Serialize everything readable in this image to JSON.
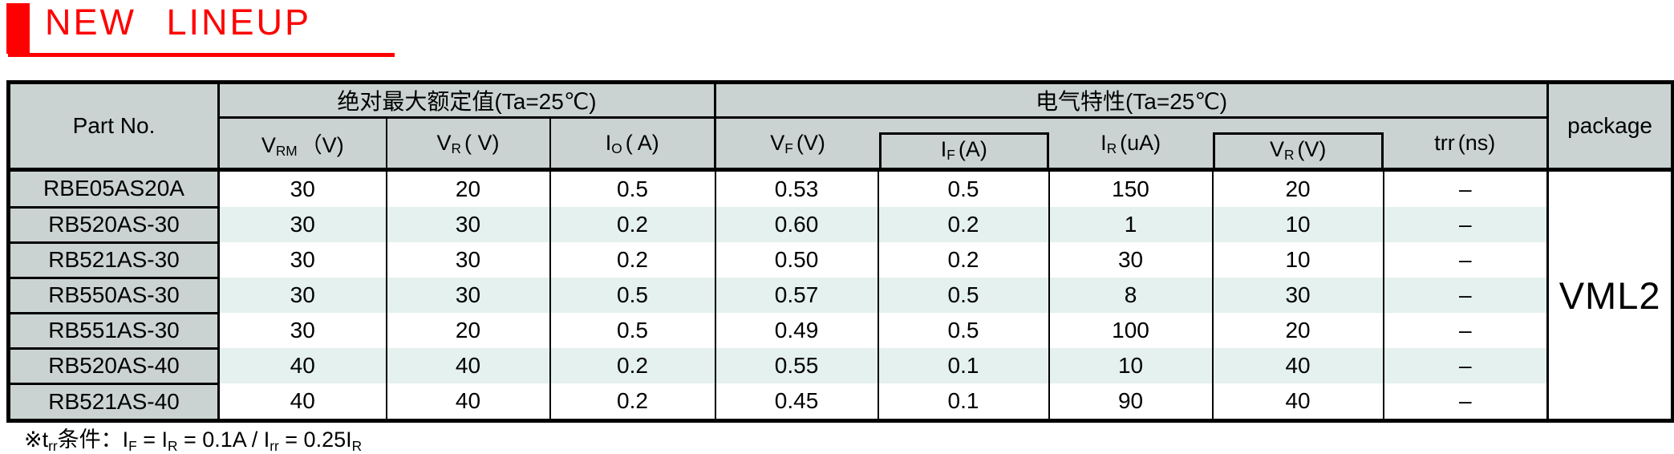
{
  "banner": {
    "title": "NEW LINEUP",
    "accent_color": "#ff0000"
  },
  "colors": {
    "header_bg": "#cad3d1",
    "row_alt_bg": "#e4f1ee",
    "border": "#000000",
    "accent_red": "#ff0000"
  },
  "table": {
    "corner_label": "Part No.",
    "group_abs_max": "绝对最大额定值(Ta=25℃)",
    "group_elec": "电气特性(Ta=25℃)",
    "package_label": "package",
    "package_value": "VML2",
    "columns": [
      {
        "base": "V",
        "sub": "RM",
        "unit": "（V)"
      },
      {
        "base": "V",
        "sub": "R",
        "unit": "( V)"
      },
      {
        "base": "I",
        "sub": "O",
        "unit": "( A)"
      },
      {
        "base": "V",
        "sub": "F",
        "unit": "(V)"
      },
      {
        "base": "I",
        "sub": "F",
        "unit": "(A)"
      },
      {
        "base": "I",
        "sub": "R",
        "unit": "(uA)"
      },
      {
        "base": "V",
        "sub": "R",
        "unit": "(V)"
      },
      {
        "base": "trr",
        "sub": "",
        "unit": "(ns)"
      }
    ],
    "rows": [
      {
        "part": "RBE05AS20A",
        "vrm": "30",
        "vr": "20",
        "io": "0.5",
        "vf": "0.53",
        "if": "0.5",
        "ir": "150",
        "vr2": "20",
        "trr": "–"
      },
      {
        "part": "RB520AS-30",
        "vrm": "30",
        "vr": "30",
        "io": "0.2",
        "vf": "0.60",
        "if": "0.2",
        "ir": "1",
        "vr2": "10",
        "trr": "–"
      },
      {
        "part": "RB521AS-30",
        "vrm": "30",
        "vr": "30",
        "io": "0.2",
        "vf": "0.50",
        "if": "0.2",
        "ir": "30",
        "vr2": "10",
        "trr": "–"
      },
      {
        "part": "RB550AS-30",
        "vrm": "30",
        "vr": "30",
        "io": "0.5",
        "vf": "0.57",
        "if": "0.5",
        "ir": "8",
        "vr2": "30",
        "trr": "–"
      },
      {
        "part": "RB551AS-30",
        "vrm": "30",
        "vr": "20",
        "io": "0.5",
        "vf": "0.49",
        "if": "0.5",
        "ir": "100",
        "vr2": "20",
        "trr": "–"
      },
      {
        "part": "RB520AS-40",
        "vrm": "40",
        "vr": "40",
        "io": "0.2",
        "vf": "0.55",
        "if": "0.1",
        "ir": "10",
        "vr2": "40",
        "trr": "–"
      },
      {
        "part": "RB521AS-40",
        "vrm": "40",
        "vr": "40",
        "io": "0.2",
        "vf": "0.45",
        "if": "0.1",
        "ir": "90",
        "vr2": "40",
        "trr": "–"
      }
    ]
  },
  "footnote": {
    "segments": [
      {
        "t": "※t"
      },
      {
        "t": "rr",
        "sub": true
      },
      {
        "t": "条件：I"
      },
      {
        "t": "F",
        "sub": true
      },
      {
        "t": " = I"
      },
      {
        "t": "R",
        "sub": true
      },
      {
        "t": " = 0.1A / I"
      },
      {
        "t": "rr",
        "sub": true
      },
      {
        "t": " = 0.25I"
      },
      {
        "t": "R",
        "sub": true
      }
    ]
  }
}
